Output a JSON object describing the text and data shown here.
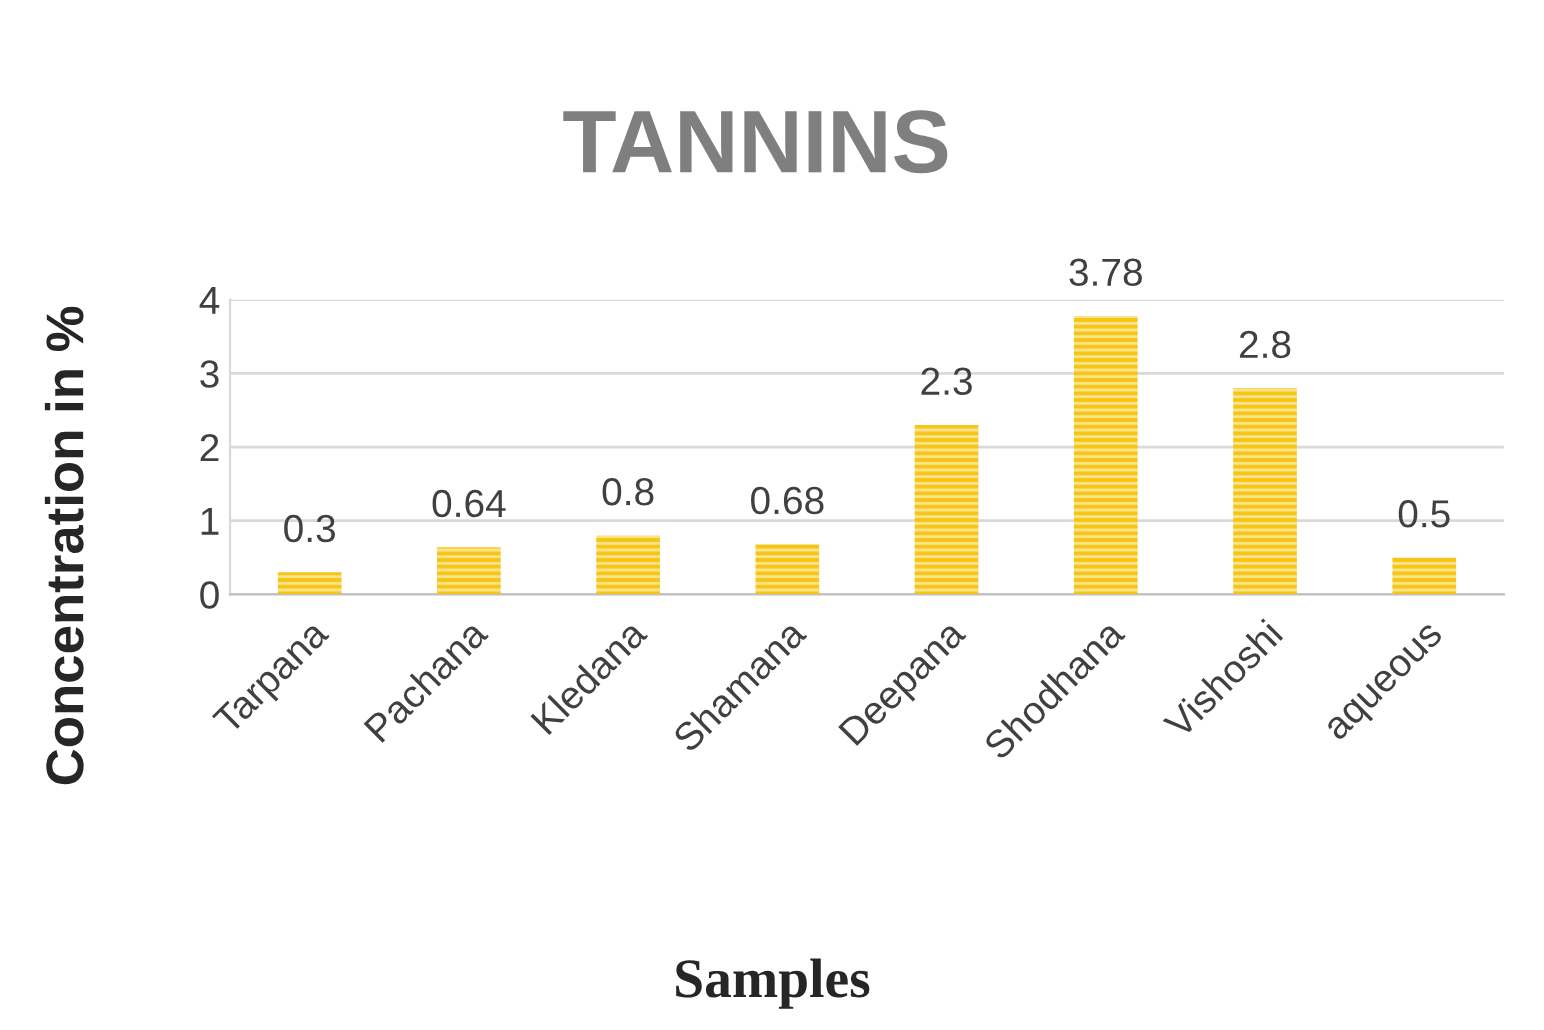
{
  "chart_data": {
    "type": "bar",
    "title": "TANNINS",
    "xlabel": "Samples",
    "ylabel": "Concentration in %",
    "categories": [
      "Tarpana",
      "Pachana",
      "Kledana",
      "Shamana",
      "Deepana",
      "Shodhana",
      "Vishoshi",
      "aqueous"
    ],
    "values": [
      0.3,
      0.64,
      0.8,
      0.68,
      2.3,
      3.78,
      2.8,
      0.5
    ],
    "color": "#f5c518",
    "data_labels": true,
    "ylim": [
      0,
      4
    ],
    "yticks": [
      0,
      1,
      2,
      3,
      4
    ],
    "grid": "y",
    "legend": false
  }
}
